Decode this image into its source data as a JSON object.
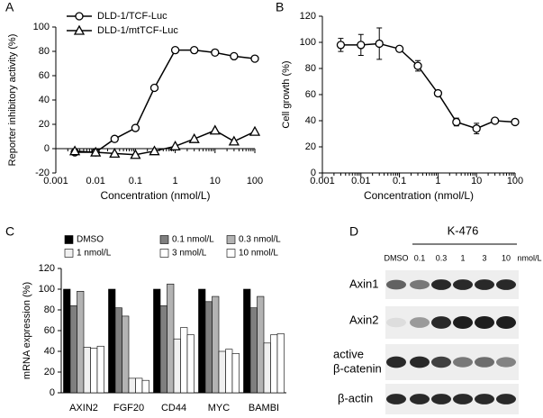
{
  "chart_data": [
    {
      "type": "line",
      "label": "A",
      "xscale": "log",
      "xlabel": "Concentration (nmol/L)",
      "ylabel": "Reporter inhibitory activity (%)",
      "x": [
        0.003,
        0.01,
        0.03,
        0.1,
        0.3,
        1,
        3,
        10,
        30,
        100
      ],
      "series": [
        {
          "name": "DLD-1/TCF-Luc",
          "color": "#000000",
          "marker": "circle",
          "values": [
            -3,
            -3,
            8,
            17,
            50,
            81,
            81,
            79,
            76,
            74
          ]
        },
        {
          "name": "DLD-1/mtTCF-Luc",
          "color": "#000000",
          "marker": "triangle",
          "values": [
            -2,
            -3,
            -4,
            -5,
            -2,
            2,
            8,
            15,
            6,
            14
          ]
        }
      ],
      "xlim": [
        0.001,
        100
      ],
      "xticks": [
        0.001,
        0.01,
        0.1,
        1,
        10,
        100
      ],
      "ylim": [
        -20,
        100
      ],
      "yticks": [
        -20,
        0,
        20,
        40,
        60,
        80,
        100
      ],
      "legend": "upper left"
    },
    {
      "type": "line",
      "label": "B",
      "xscale": "log",
      "xlabel": "Concentration (nmol/L)",
      "ylabel": "Cell growth (%)",
      "x": [
        0.003,
        0.01,
        0.03,
        0.1,
        0.3,
        1,
        3,
        10,
        30,
        100
      ],
      "series": [
        {
          "color": "#000000",
          "marker": "circle",
          "values": [
            98,
            98,
            99,
            95,
            82,
            61,
            39,
            34,
            40,
            39
          ],
          "errors": [
            5,
            8,
            12,
            2,
            4,
            0,
            3,
            4,
            0,
            0
          ]
        }
      ],
      "xlim": [
        0.001,
        100
      ],
      "xticks": [
        0.001,
        0.01,
        0.1,
        1,
        10,
        100
      ],
      "ylim": [
        0,
        120
      ],
      "yticks": [
        0,
        20,
        40,
        60,
        80,
        100,
        120
      ]
    },
    {
      "type": "bar",
      "label": "C",
      "ylabel": "mRNA expression (%)",
      "categories": [
        "AXIN2",
        "FGF20",
        "CD44",
        "MYC",
        "BAMBI"
      ],
      "series": [
        {
          "name": "DMSO",
          "color": "#000000",
          "values": [
            100,
            100,
            100,
            100,
            100
          ]
        },
        {
          "name": "0.1 nmol/L",
          "color": "#7f7f7f",
          "values": [
            84,
            82,
            84,
            88,
            82
          ]
        },
        {
          "name": "0.3 nmol/L",
          "color": "#b3b3b3",
          "values": [
            98,
            74,
            105,
            93,
            93
          ]
        },
        {
          "name": "1 nmol/L",
          "color": "#f0f0f0",
          "values": [
            44,
            14,
            52,
            40,
            48
          ]
        },
        {
          "name": "3 nmol/L",
          "color": "#ffffff",
          "values": [
            43,
            14,
            63,
            42,
            56
          ]
        },
        {
          "name": "10 nmol/L",
          "color": "#ffffff",
          "values": [
            45,
            12,
            56,
            38,
            57
          ]
        }
      ],
      "ylim": [
        0,
        120
      ],
      "yticks": [
        0,
        20,
        40,
        60,
        80,
        100,
        120
      ]
    }
  ],
  "blot": {
    "label": "D",
    "treatment": "K-476",
    "lanes": [
      "DMSO",
      "0.1",
      "0.3",
      "1",
      "3",
      "10"
    ],
    "unit": "nmol/L",
    "rows": [
      "Axin1",
      "Axin2",
      [
        "active",
        "β-catenin"
      ],
      "β-actin"
    ]
  }
}
